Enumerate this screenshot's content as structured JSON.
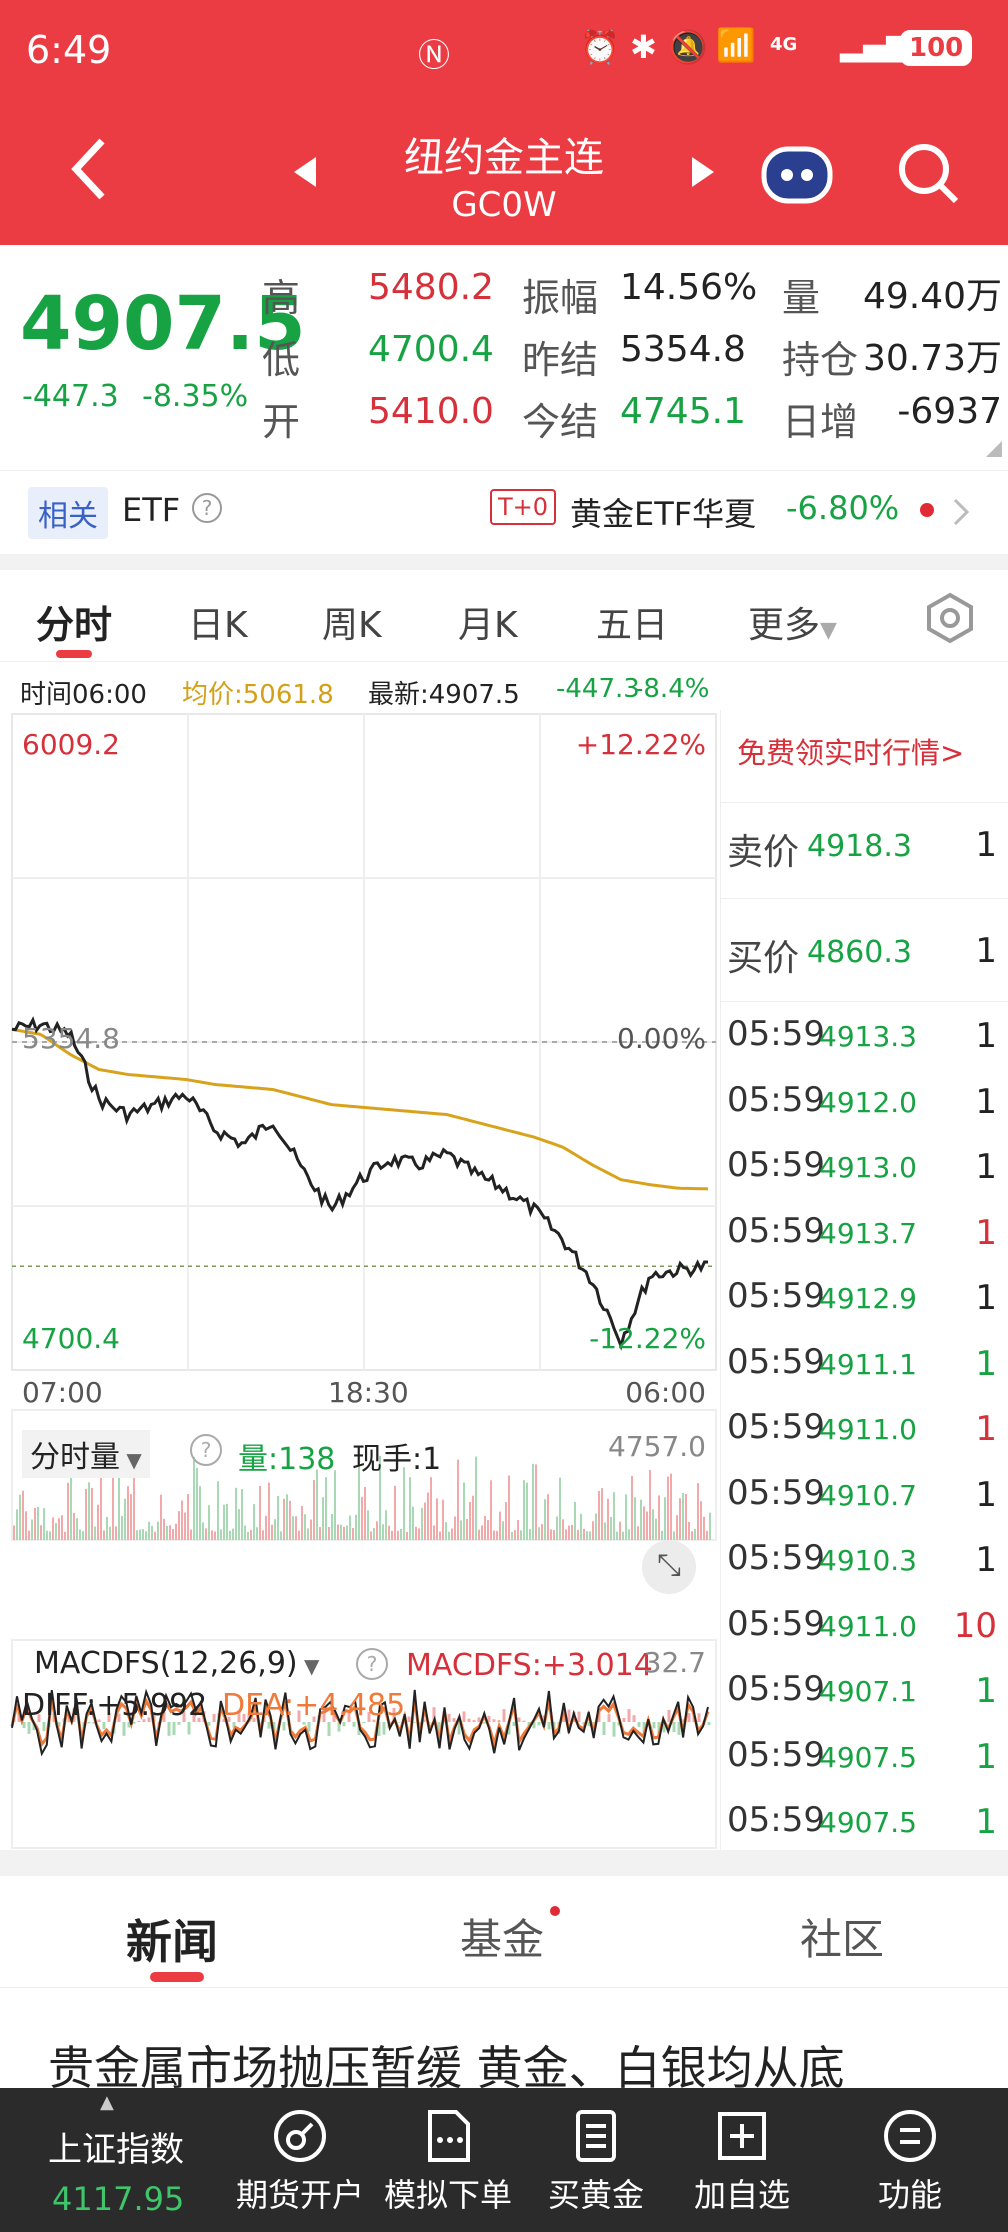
{
  "status": {
    "time": "6:49",
    "battery": "100",
    "network": "4G"
  },
  "header": {
    "title": "纽约金主连",
    "code": "GC0W"
  },
  "quote": {
    "price": "4907.5",
    "change": "-447.3",
    "change_pct": "-8.35%",
    "rows": [
      {
        "l1": "高",
        "v1": "5480.2",
        "l2": "振幅",
        "v2": "14.56%",
        "l3": "量",
        "v3": "49.40万"
      },
      {
        "l1": "低",
        "v1": "4700.4",
        "l2": "昨结",
        "v2": "5354.8",
        "l3": "持仓",
        "v3": "30.73万"
      },
      {
        "l1": "开",
        "v1": "5410.0",
        "l2": "今结",
        "v2": "4745.1",
        "l3": "日增",
        "v3": "-6937"
      }
    ]
  },
  "etf": {
    "tag": "相关",
    "label": "ETF",
    "t0": "T+0",
    "name": "黄金ETF华夏",
    "pct": "-6.80%"
  },
  "tabs": [
    "分时",
    "日K",
    "周K",
    "月K",
    "五日",
    "更多"
  ],
  "info": {
    "time": "时间06:00",
    "avg": "均价:5061.8",
    "latest": "最新:4907.5",
    "chg": "-447.3",
    "pct": "-8.4%"
  },
  "chart": {
    "high_label": "6009.2",
    "high_pct": "+12.22%",
    "mid_label": "5354.8",
    "mid_pct": "0.00%",
    "low_label": "4700.4",
    "low_pct": "-12.22%",
    "times": [
      "07:00",
      "18:30",
      "06:00"
    ],
    "vol_title": "分时量",
    "vol_value": "量:138",
    "vol_hand": "现手:1",
    "vol_max": "4757.0",
    "macd_title": "MACDFS(12,26,9)",
    "macd_val": "MACDFS:+3.014",
    "macd_max": "32.7",
    "diff": "DIFF:+5.992",
    "dea": "DEA:+4.485"
  },
  "chart_data": {
    "type": "line",
    "series": [
      {
        "name": "最新",
        "values": [
          5380,
          5390,
          5370,
          5240,
          5210,
          5230,
          5250,
          5180,
          5150,
          5200,
          5100,
          5020,
          5080,
          5120,
          5110,
          5130,
          5090,
          5060,
          5020,
          4960,
          4880,
          4760,
          4890,
          4900,
          4907.5
        ]
      },
      {
        "name": "均价",
        "values": [
          5380,
          5370,
          5330,
          5300,
          5290,
          5285,
          5280,
          5270,
          5265,
          5260,
          5245,
          5230,
          5225,
          5220,
          5215,
          5210,
          5195,
          5180,
          5165,
          5145,
          5110,
          5080,
          5070,
          5063,
          5061.8
        ]
      }
    ],
    "ylim": [
      4700.4,
      6009.2
    ]
  },
  "trades": {
    "promo": "免费领实时行情>",
    "sell_label": "卖价",
    "sell_price": "4918.3",
    "sell_qty": "1",
    "buy_label": "买价",
    "buy_price": "4860.3",
    "buy_qty": "1",
    "rows": [
      {
        "t": "05:59",
        "p": "4913.3",
        "q": "1",
        "c": "black"
      },
      {
        "t": "05:59",
        "p": "4912.0",
        "q": "1",
        "c": "black"
      },
      {
        "t": "05:59",
        "p": "4913.0",
        "q": "1",
        "c": "black"
      },
      {
        "t": "05:59",
        "p": "4913.7",
        "q": "1",
        "c": "red"
      },
      {
        "t": "05:59",
        "p": "4912.9",
        "q": "1",
        "c": "black"
      },
      {
        "t": "05:59",
        "p": "4911.1",
        "q": "1",
        "c": "green"
      },
      {
        "t": "05:59",
        "p": "4911.0",
        "q": "1",
        "c": "red"
      },
      {
        "t": "05:59",
        "p": "4910.7",
        "q": "1",
        "c": "black"
      },
      {
        "t": "05:59",
        "p": "4910.3",
        "q": "1",
        "c": "black"
      },
      {
        "t": "05:59",
        "p": "4911.0",
        "q": "10",
        "c": "red"
      },
      {
        "t": "05:59",
        "p": "4907.1",
        "q": "1",
        "c": "green"
      },
      {
        "t": "05:59",
        "p": "4907.5",
        "q": "1",
        "c": "green"
      },
      {
        "t": "05:59",
        "p": "4907.5",
        "q": "1",
        "c": "green"
      }
    ]
  },
  "news_tabs": [
    "新闻",
    "基金",
    "社区"
  ],
  "headline": "贵金属市场抛压暂缓 黄金、白银均从底",
  "bottom": {
    "index_name": "上证指数",
    "index_value": "4117.95",
    "items": [
      "期货开户",
      "模拟下单",
      "买黄金",
      "加自选",
      "功能"
    ]
  }
}
